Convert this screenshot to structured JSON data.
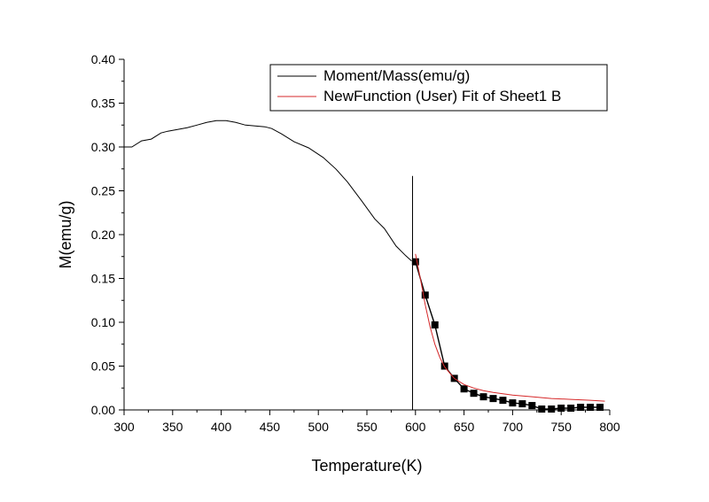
{
  "chart_data": {
    "type": "line",
    "title": "",
    "xlabel": "Temperature(K)",
    "ylabel": "M(emu/g)",
    "xlim": [
      300,
      800
    ],
    "ylim": [
      0.0,
      0.4
    ],
    "xticks": [
      "300",
      "350",
      "400",
      "450",
      "500",
      "550",
      "600",
      "650",
      "700",
      "750",
      "800"
    ],
    "yticks": [
      "0.00",
      "0.05",
      "0.10",
      "0.15",
      "0.20",
      "0.25",
      "0.30",
      "0.35",
      "0.40"
    ],
    "grid": false,
    "legend": {
      "placement": "top-right",
      "entries": [
        "Moment/Mass(emu/g)",
        "NewFunction (User) Fit of Sheet1 B"
      ]
    },
    "series": [
      {
        "name": "Moment/Mass(emu/g)",
        "style": "line",
        "color": "#000000",
        "x": [
          300,
          308,
          318,
          328,
          338,
          345,
          355,
          365,
          375,
          385,
          395,
          405,
          415,
          425,
          435,
          445,
          452,
          462,
          475,
          490,
          505,
          518,
          530,
          545,
          558,
          568,
          580,
          590,
          596
        ],
        "y": [
          0.3,
          0.3,
          0.307,
          0.309,
          0.316,
          0.318,
          0.32,
          0.322,
          0.325,
          0.328,
          0.33,
          0.33,
          0.328,
          0.325,
          0.324,
          0.323,
          0.321,
          0.315,
          0.306,
          0.299,
          0.288,
          0.275,
          0.26,
          0.238,
          0.218,
          0.207,
          0.187,
          0.176,
          0.17
        ]
      },
      {
        "name": "vertical marker",
        "style": "vline",
        "color": "#000000",
        "x": [
          597,
          597
        ],
        "y": [
          0.0,
          0.267
        ]
      },
      {
        "name": "Sheet1 B",
        "style": "line-markers",
        "color": "#000000",
        "x": [
          600,
          610,
          620,
          630,
          640,
          650,
          660,
          670,
          680,
          690,
          700,
          710,
          720,
          730,
          740,
          750,
          760,
          770,
          780,
          790
        ],
        "y": [
          0.169,
          0.131,
          0.097,
          0.05,
          0.036,
          0.024,
          0.019,
          0.015,
          0.013,
          0.011,
          0.008,
          0.007,
          0.005,
          0.001,
          0.001,
          0.002,
          0.002,
          0.003,
          0.003,
          0.003
        ]
      },
      {
        "name": "NewFunction (User) Fit of Sheet1 B",
        "style": "line",
        "color": "#d62728",
        "x": [
          600,
          605,
          610,
          615,
          620,
          625,
          630,
          640,
          650,
          660,
          670,
          680,
          700,
          720,
          740,
          760,
          780,
          795
        ],
        "y": [
          0.178,
          0.15,
          0.12,
          0.095,
          0.075,
          0.06,
          0.049,
          0.036,
          0.029,
          0.025,
          0.022,
          0.02,
          0.017,
          0.015,
          0.013,
          0.012,
          0.011,
          0.01
        ]
      }
    ]
  }
}
